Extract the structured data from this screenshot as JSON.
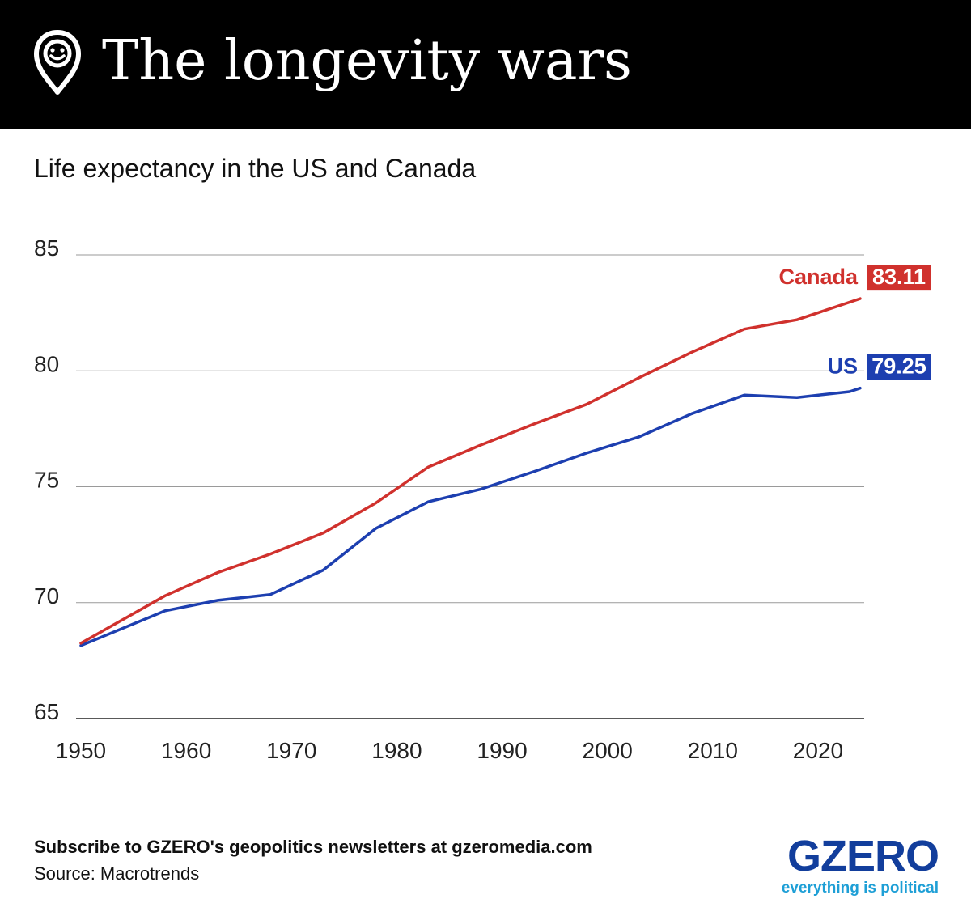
{
  "header": {
    "title": "The longevity wars",
    "logo_icon": "smiley-pin-icon"
  },
  "chart_data": {
    "type": "line",
    "title": "The longevity wars",
    "subtitle": "Life expectancy in the US and Canada",
    "xlabel": "",
    "ylabel": "",
    "xlim": [
      1950,
      2024
    ],
    "ylim": [
      65,
      85
    ],
    "x_ticks": [
      1950,
      1960,
      1970,
      1980,
      1990,
      2000,
      2010,
      2020
    ],
    "y_ticks": [
      65,
      70,
      75,
      80,
      85
    ],
    "grid": true,
    "series": [
      {
        "name": "Canada",
        "color": "#d0312d",
        "end_label": "83.11",
        "x": [
          1950,
          1958,
          1963,
          1968,
          1973,
          1978,
          1983,
          1988,
          1993,
          1998,
          2003,
          2008,
          2013,
          2018,
          2024
        ],
        "values": [
          68.25,
          70.3,
          71.3,
          72.1,
          73.0,
          74.3,
          75.85,
          76.8,
          77.7,
          78.55,
          79.7,
          80.8,
          81.8,
          82.2,
          83.11
        ]
      },
      {
        "name": "US",
        "color": "#1d3fb0",
        "end_label": "79.25",
        "x": [
          1950,
          1958,
          1963,
          1968,
          1973,
          1978,
          1983,
          1988,
          1993,
          1998,
          2003,
          2008,
          2013,
          2018,
          2023,
          2024
        ],
        "values": [
          68.15,
          69.65,
          70.1,
          70.35,
          71.4,
          73.2,
          74.35,
          74.9,
          75.65,
          76.45,
          77.15,
          78.15,
          78.95,
          78.85,
          79.1,
          79.25
        ]
      }
    ]
  },
  "footer": {
    "subscribe": "Subscribe to GZERO's geopolitics newsletters at gzeromedia.com",
    "source": "Source: Macrotrends"
  },
  "brand": {
    "name": "GZERO",
    "tagline": "everything is political",
    "color": "#123e9c",
    "tagline_color": "#1e9fd6"
  }
}
